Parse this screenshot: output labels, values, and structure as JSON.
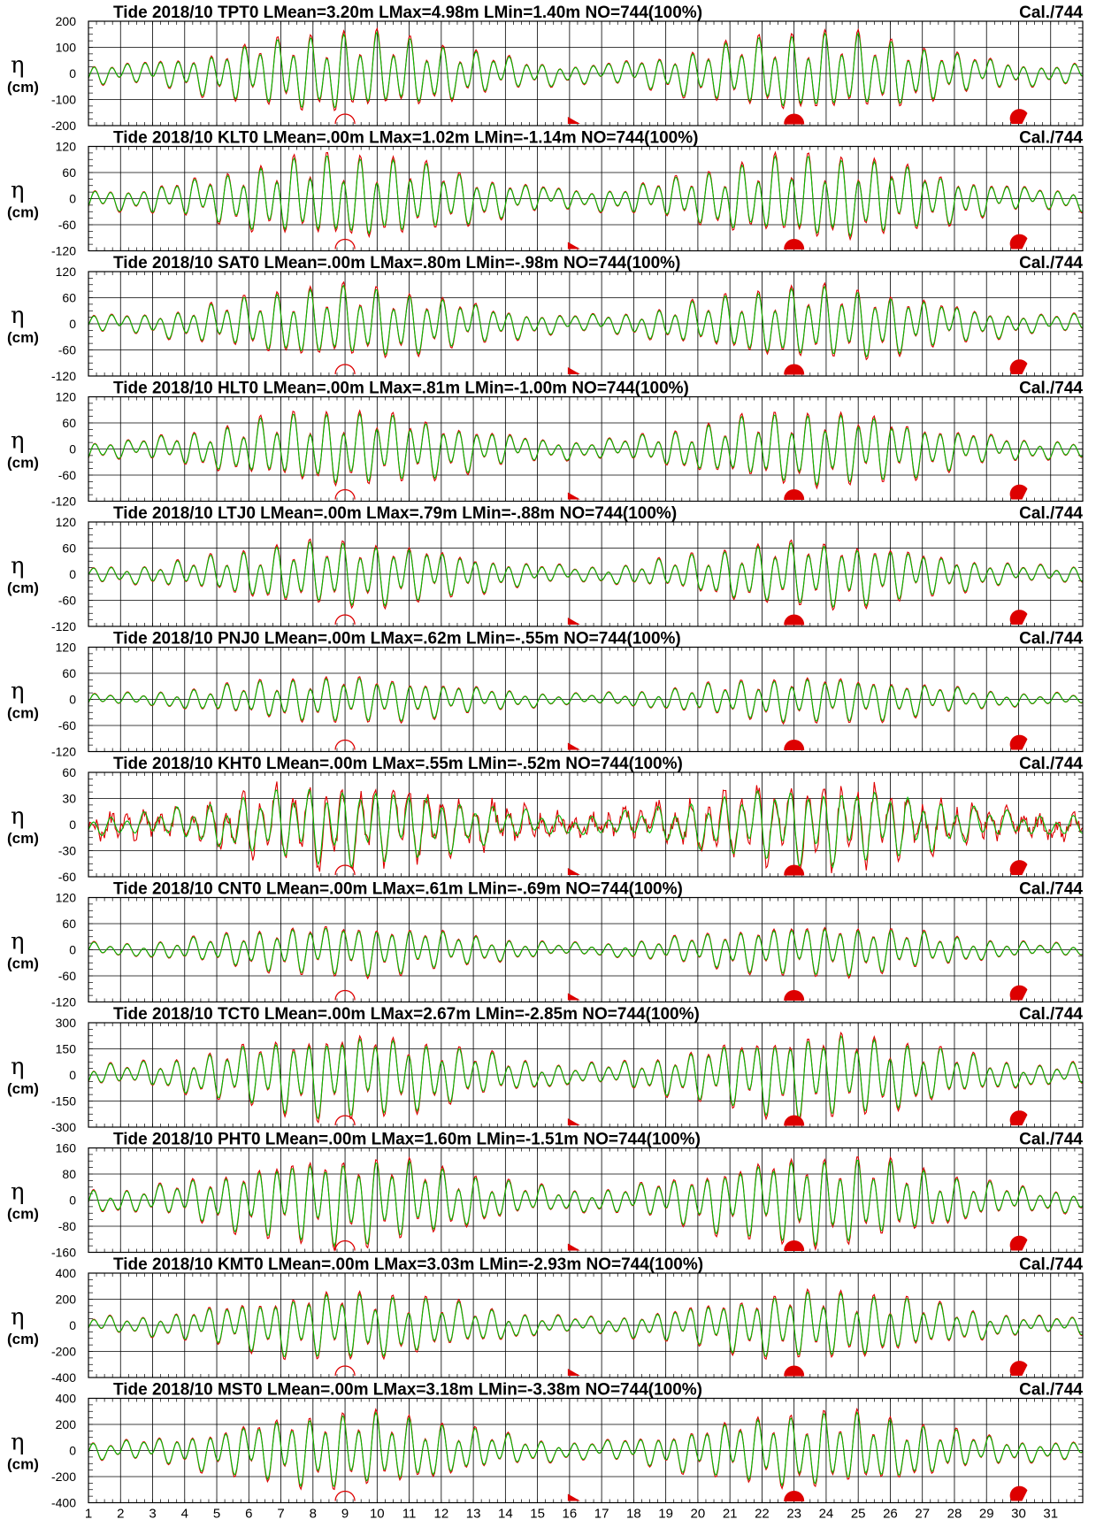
{
  "chart_data": {
    "type": "line",
    "x_label_ticks": [
      "1",
      "2",
      "3",
      "4",
      "5",
      "6",
      "7",
      "8",
      "9",
      "10",
      "11",
      "12",
      "13",
      "14",
      "15",
      "16",
      "17",
      "18",
      "19",
      "20",
      "21",
      "22",
      "23",
      "24",
      "25",
      "26",
      "27",
      "28",
      "29",
      "30",
      "31"
    ],
    "xlim": [
      1,
      32
    ],
    "y_symbol": "η",
    "y_unit": "(cm)",
    "grid": true,
    "series_colors": {
      "observed": "#dd0000",
      "calculated": "#00bb00"
    },
    "moon_phases": [
      {
        "day": 9,
        "phase": "new"
      },
      {
        "day": 16,
        "phase": "first-quarter"
      },
      {
        "day": 23,
        "phase": "full"
      },
      {
        "day": 30,
        "phase": "last-quarter"
      }
    ],
    "panels": [
      {
        "title": "Tide 2018/10 TPT0 LMean=3.20m LMax=4.98m LMin=1.40m NO=744(100%)",
        "cal": "Cal./744",
        "ylim": [
          -200,
          200
        ],
        "yticks": [
          "200",
          "100",
          "0",
          "-100",
          "-200"
        ]
      },
      {
        "title": "Tide 2018/10 KLT0 LMean=.00m LMax=1.02m LMin=-1.14m NO=744(100%)",
        "cal": "Cal./744",
        "ylim": [
          -120,
          120
        ],
        "yticks": [
          "120",
          "60",
          "0",
          "-60",
          "-120"
        ]
      },
      {
        "title": "Tide 2018/10 SAT0 LMean=.00m LMax=.80m LMin=-.98m NO=744(100%)",
        "cal": "Cal./744",
        "ylim": [
          -120,
          120
        ],
        "yticks": [
          "120",
          "60",
          "0",
          "-60",
          "-120"
        ]
      },
      {
        "title": "Tide 2018/10 HLT0 LMean=.00m LMax=.81m LMin=-1.00m NO=744(100%)",
        "cal": "Cal./744",
        "ylim": [
          -120,
          120
        ],
        "yticks": [
          "120",
          "60",
          "0",
          "-60",
          "-120"
        ]
      },
      {
        "title": "Tide 2018/10 LTJ0 LMean=.00m LMax=.79m LMin=-.88m NO=744(100%)",
        "cal": "Cal./744",
        "ylim": [
          -120,
          120
        ],
        "yticks": [
          "120",
          "60",
          "0",
          "-60",
          "-120"
        ]
      },
      {
        "title": "Tide 2018/10 PNJ0 LMean=.00m LMax=.62m LMin=-.55m NO=744(100%)",
        "cal": "Cal./744",
        "ylim": [
          -120,
          120
        ],
        "yticks": [
          "120",
          "60",
          "0",
          "-60",
          "-120"
        ]
      },
      {
        "title": "Tide 2018/10 KHT0 LMean=.00m LMax=.55m LMin=-.52m NO=744(100%)",
        "cal": "Cal./744",
        "ylim": [
          -60,
          60
        ],
        "yticks": [
          "60",
          "30",
          "0",
          "-30",
          "-60"
        ]
      },
      {
        "title": "Tide 2018/10 CNT0 LMean=.00m LMax=.61m LMin=-.69m NO=744(100%)",
        "cal": "Cal./744",
        "ylim": [
          -120,
          120
        ],
        "yticks": [
          "120",
          "60",
          "0",
          "-60",
          "-120"
        ]
      },
      {
        "title": "Tide 2018/10 TCT0 LMean=.00m LMax=2.67m LMin=-2.85m NO=744(100%)",
        "cal": "Cal./744",
        "ylim": [
          -300,
          300
        ],
        "yticks": [
          "300",
          "150",
          "0",
          "-150",
          "-300"
        ]
      },
      {
        "title": "Tide 2018/10 PHT0 LMean=.00m LMax=1.60m LMin=-1.51m NO=744(100%)",
        "cal": "Cal./744",
        "ylim": [
          -160,
          160
        ],
        "yticks": [
          "160",
          "80",
          "0",
          "-80",
          "-160"
        ]
      },
      {
        "title": "Tide 2018/10 KMT0 LMean=.00m LMax=3.03m LMin=-2.93m NO=744(100%)",
        "cal": "Cal./744",
        "ylim": [
          -400,
          400
        ],
        "yticks": [
          "400",
          "200",
          "0",
          "-200",
          "-400"
        ]
      },
      {
        "title": "Tide 2018/10 MST0 LMean=.00m LMax=3.18m LMin=-3.38m NO=744(100%)",
        "cal": "Cal./744",
        "ylim": [
          -400,
          400
        ],
        "yticks": [
          "400",
          "200",
          "0",
          "-200",
          "-400"
        ]
      }
    ]
  }
}
